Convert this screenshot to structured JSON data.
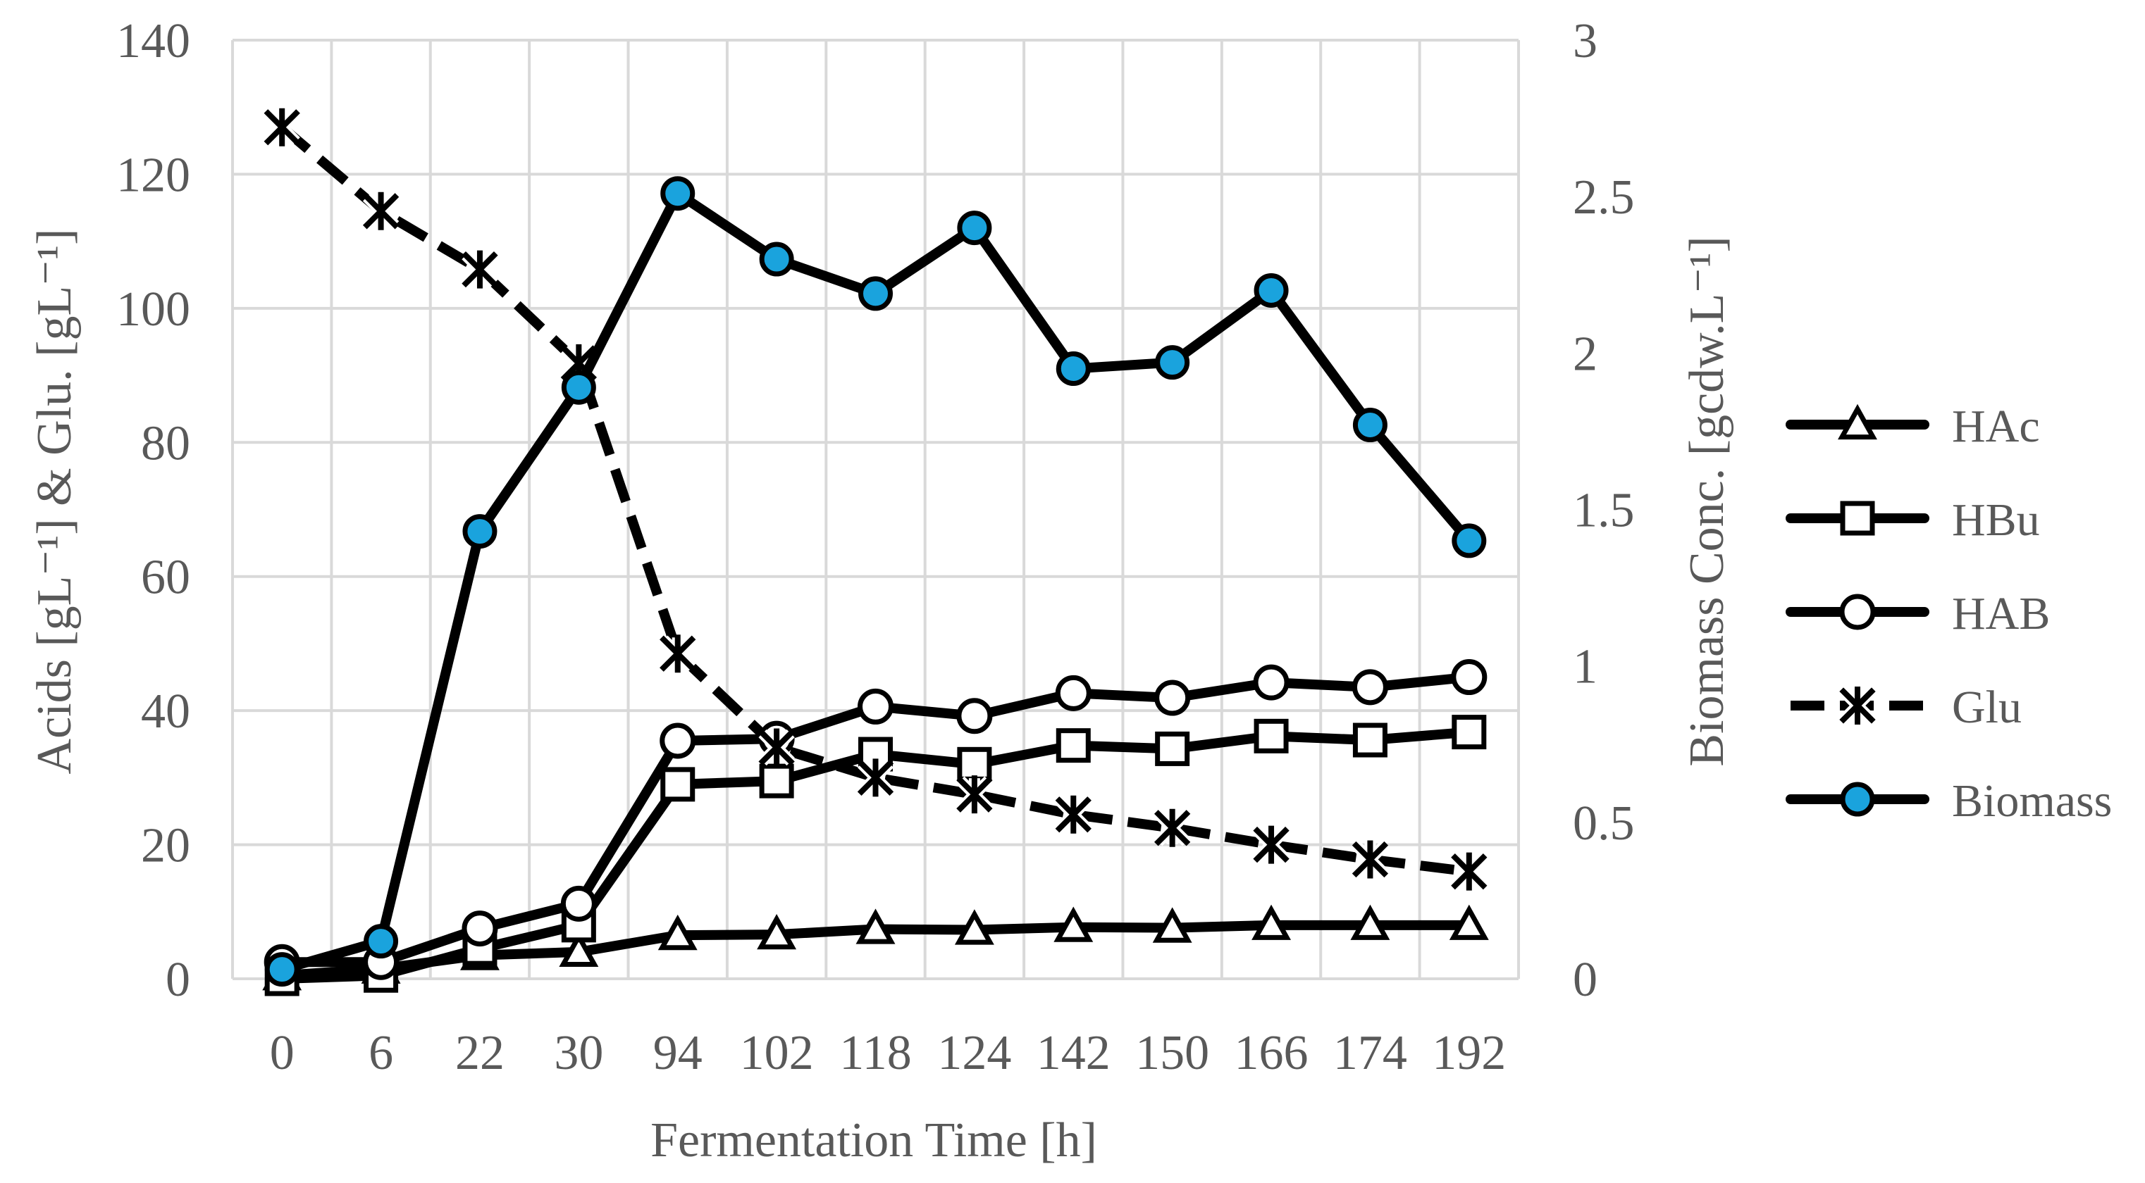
{
  "chart_data": {
    "type": "line",
    "categories": [
      "0",
      "6",
      "22",
      "30",
      "94",
      "102",
      "118",
      "124",
      "142",
      "150",
      "166",
      "174",
      "192"
    ],
    "xlabel": "Fermentation Time [h]",
    "ylabel": "Acids [gL⁻¹] & Glu. [gL⁻¹]",
    "y2label": "Biomass Conc. [gcdw.L⁻¹]",
    "ylim": [
      0,
      140
    ],
    "y2lim": [
      0,
      3
    ],
    "yticks": [
      "0",
      "20",
      "40",
      "60",
      "80",
      "100",
      "120",
      "140"
    ],
    "y2ticks": [
      "0",
      "0.5",
      "1",
      "1.5",
      "2",
      "2.5",
      "3"
    ],
    "grid": true,
    "legend_position": "right",
    "series": [
      {
        "name": "HAc",
        "axis": "left",
        "marker": "triangle",
        "dashed": false,
        "values": [
          0.5,
          1.5,
          3.5,
          4.0,
          6.5,
          6.6,
          7.4,
          7.3,
          7.7,
          7.6,
          8.0,
          8.0,
          8.0
        ]
      },
      {
        "name": "HBu",
        "axis": "left",
        "marker": "square",
        "dashed": false,
        "values": [
          0.0,
          0.5,
          4.5,
          8.0,
          29.0,
          29.5,
          33.5,
          32.0,
          34.8,
          34.3,
          36.2,
          35.6,
          36.8
        ]
      },
      {
        "name": "HAB",
        "axis": "left",
        "marker": "circle",
        "dashed": false,
        "values": [
          2.5,
          2.5,
          7.5,
          11.2,
          35.5,
          35.8,
          40.6,
          39.2,
          42.6,
          41.9,
          44.2,
          43.5,
          45.0
        ]
      },
      {
        "name": "Glu",
        "axis": "left",
        "marker": "cross",
        "dashed": true,
        "values": [
          127.0,
          114.5,
          105.8,
          91.8,
          48.5,
          34.5,
          30.0,
          27.5,
          24.5,
          22.5,
          20.0,
          17.8,
          16.0
        ]
      },
      {
        "name": "Biomass",
        "axis": "right",
        "marker": "filled-circle",
        "dashed": false,
        "values": [
          0.03,
          0.12,
          1.43,
          1.89,
          2.51,
          2.3,
          2.19,
          2.4,
          1.95,
          1.97,
          2.2,
          1.77,
          1.4
        ]
      }
    ]
  },
  "colors": {
    "line": "#000000",
    "marker_fill": "#ffffff",
    "biomass_fill": "#1aa3dd",
    "grid": "#d9d9d9",
    "text": "#595959"
  }
}
